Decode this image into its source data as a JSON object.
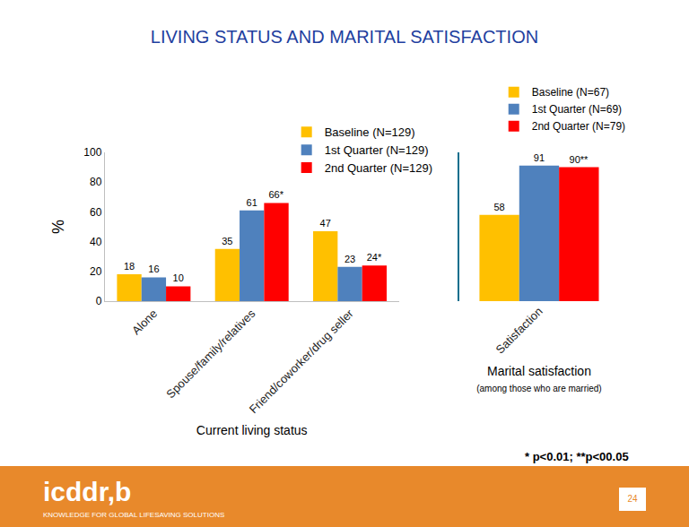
{
  "slide": {
    "title": "LIVING STATUS AND MARITAL SATISFACTION",
    "footnote": "* p<0.01; **p<00.05",
    "logo": "icddr,b",
    "tagline": "KNOWLEDGE FOR GLOBAL LIFESAVING SOLUTIONS",
    "page_number": "24"
  },
  "chart_data": [
    {
      "type": "bar",
      "xlabel": "Current living status",
      "ylabel": "%",
      "categories": [
        "Alone",
        "Spouse/family/relatives",
        "Friend/coworker/drug seller"
      ],
      "series": [
        {
          "name": "Baseline (N=129)",
          "color": "#FFC000",
          "values": [
            18,
            35,
            47
          ]
        },
        {
          "name": "1st Quarter (N=129)",
          "color": "#4F81BD",
          "values": [
            16,
            61,
            23
          ]
        },
        {
          "name": "2nd Quarter (N=129)",
          "color": "#FF0000",
          "values": [
            10,
            66,
            24
          ],
          "value_labels": [
            "10",
            "66*",
            "24*"
          ]
        }
      ],
      "ylim": [
        0,
        100
      ],
      "yticks": [
        0,
        20,
        40,
        60,
        80,
        100
      ],
      "grid": false,
      "legend": "upper right",
      "data_labels": true
    },
    {
      "type": "bar",
      "xlabel": "Marital satisfaction",
      "subtitle": "(among those who are married)",
      "categories": [
        "Satisfaction"
      ],
      "series": [
        {
          "name": "Baseline (N=67)",
          "color": "#FFC000",
          "values": [
            58
          ]
        },
        {
          "name": "1st Quarter (N=69)",
          "color": "#4F81BD",
          "values": [
            91
          ]
        },
        {
          "name": "2nd Quarter (N=79)",
          "color": "#FF0000",
          "values": [
            90
          ],
          "value_labels": [
            "90**"
          ]
        }
      ],
      "ylim": [
        0,
        100
      ],
      "yticks": [],
      "tick_labels": "x",
      "grid": false,
      "legend": "upper right",
      "data_labels": true
    }
  ]
}
